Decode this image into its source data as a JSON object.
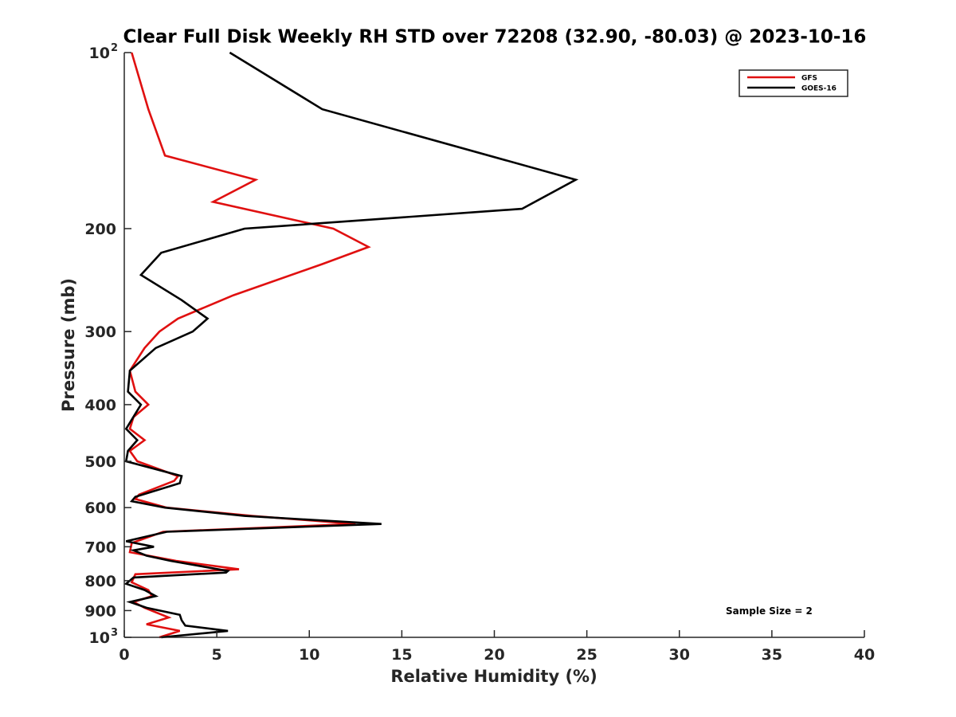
{
  "chart_data": {
    "type": "line",
    "title": "Clear Full Disk Weekly RH STD over 72208 (32.90, -80.03) @ 2023-10-16",
    "xlabel": "Relative Humidity (%)",
    "ylabel": "Pressure (mb)",
    "xlim": [
      0,
      40
    ],
    "ylim": [
      100,
      1000
    ],
    "yscale": "log",
    "y_reversed": true,
    "grid": false,
    "legend_position": "top-right",
    "x_ticks": [
      0,
      5,
      10,
      15,
      20,
      25,
      30,
      35,
      40
    ],
    "x_tick_labels": [
      "0",
      "5",
      "10",
      "15",
      "20",
      "25",
      "30",
      "35",
      "40"
    ],
    "y_ticks": [
      100,
      200,
      300,
      400,
      500,
      600,
      700,
      800,
      900,
      1000
    ],
    "y_tick_labels": [
      {
        "base": "10",
        "exp": "2"
      },
      {
        "text": "200"
      },
      {
        "text": "300"
      },
      {
        "text": "400"
      },
      {
        "text": "500"
      },
      {
        "text": "600"
      },
      {
        "text": "700"
      },
      {
        "text": "800"
      },
      {
        "text": "900"
      },
      {
        "base": "10",
        "exp": "3"
      }
    ],
    "series": [
      {
        "name": "GFS",
        "color": "#e01010",
        "points": [
          [
            0.4,
            100
          ],
          [
            1.3,
            125
          ],
          [
            2.2,
            150
          ],
          [
            7.1,
            165
          ],
          [
            4.8,
            180
          ],
          [
            11.3,
            200
          ],
          [
            13.2,
            215
          ],
          [
            10.7,
            230
          ],
          [
            5.9,
            260
          ],
          [
            2.9,
            285
          ],
          [
            1.9,
            300
          ],
          [
            1.1,
            320
          ],
          [
            0.3,
            350
          ],
          [
            0.6,
            380
          ],
          [
            1.3,
            400
          ],
          [
            0.5,
            420
          ],
          [
            0.3,
            440
          ],
          [
            1.1,
            460
          ],
          [
            0.3,
            480
          ],
          [
            0.7,
            500
          ],
          [
            2.9,
            530
          ],
          [
            2.7,
            540
          ],
          [
            0.8,
            570
          ],
          [
            0.6,
            580
          ],
          [
            2.3,
            600
          ],
          [
            6.9,
            620
          ],
          [
            12.5,
            640
          ],
          [
            2.1,
            660
          ],
          [
            0.4,
            690
          ],
          [
            0.3,
            715
          ],
          [
            2.8,
            740
          ],
          [
            6.2,
            765
          ],
          [
            0.6,
            780
          ],
          [
            0.4,
            805
          ],
          [
            1.3,
            830
          ],
          [
            1.5,
            850
          ],
          [
            0.5,
            870
          ],
          [
            1.1,
            890
          ],
          [
            2.4,
            925
          ],
          [
            1.2,
            950
          ],
          [
            3.0,
            975
          ],
          [
            1.9,
            1000
          ]
        ]
      },
      {
        "name": "GOES-16",
        "color": "#000000",
        "points": [
          [
            5.7,
            100
          ],
          [
            10.7,
            125
          ],
          [
            24.4,
            165
          ],
          [
            21.5,
            185
          ],
          [
            6.5,
            200
          ],
          [
            2.0,
            220
          ],
          [
            0.9,
            240
          ],
          [
            3.1,
            265
          ],
          [
            4.5,
            285
          ],
          [
            3.7,
            300
          ],
          [
            1.7,
            320
          ],
          [
            0.3,
            350
          ],
          [
            0.2,
            380
          ],
          [
            0.9,
            400
          ],
          [
            0.1,
            440
          ],
          [
            0.7,
            460
          ],
          [
            0.2,
            480
          ],
          [
            0.1,
            500
          ],
          [
            3.1,
            530
          ],
          [
            3.0,
            545
          ],
          [
            0.6,
            575
          ],
          [
            0.4,
            585
          ],
          [
            2.2,
            600
          ],
          [
            6.5,
            620
          ],
          [
            13.9,
            640
          ],
          [
            2.3,
            660
          ],
          [
            0.1,
            685
          ],
          [
            1.6,
            700
          ],
          [
            0.5,
            710
          ],
          [
            1.2,
            725
          ],
          [
            2.5,
            740
          ],
          [
            5.6,
            770
          ],
          [
            5.5,
            775
          ],
          [
            0.5,
            790
          ],
          [
            0.1,
            810
          ],
          [
            1.1,
            830
          ],
          [
            1.7,
            850
          ],
          [
            0.3,
            870
          ],
          [
            1.2,
            890
          ],
          [
            3.0,
            915
          ],
          [
            3.1,
            935
          ],
          [
            3.3,
            955
          ],
          [
            5.6,
            975
          ],
          [
            2.0,
            1000
          ]
        ]
      }
    ],
    "annotation": "Sample Size = 2"
  }
}
